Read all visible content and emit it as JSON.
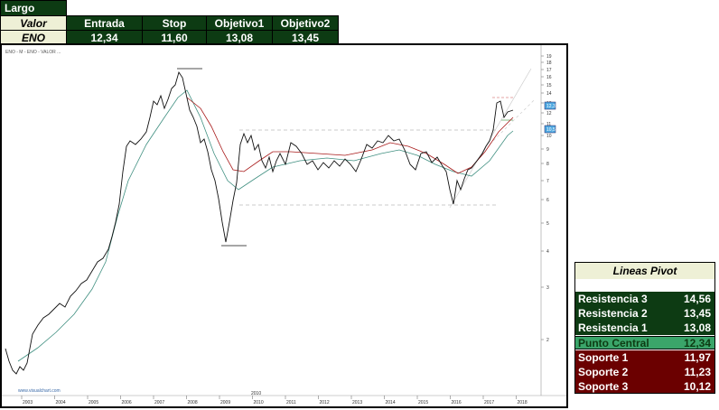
{
  "trade": {
    "direction": "Largo",
    "headers": [
      "Valor",
      "Entrada",
      "Stop",
      "Objetivo1",
      "Objetivo2"
    ],
    "values": [
      "ENO",
      "12,34",
      "11,60",
      "13,08",
      "13,45"
    ]
  },
  "chart": {
    "price_axis": [
      "19",
      "18",
      "17",
      "16",
      "15",
      "14",
      "13",
      "12",
      "11",
      "10",
      "9",
      "8",
      "7",
      "6",
      "5",
      "4",
      "3",
      "2"
    ],
    "x_axis": [
      "2003",
      "2004",
      "2005",
      "2006",
      "2007",
      "2008",
      "2009",
      "2010",
      "2011",
      "2012",
      "2013",
      "2014",
      "2015",
      "2016",
      "2017",
      "2018"
    ],
    "cursor_year": "2010",
    "watermark": "www.visualchart.com",
    "tags": [
      "12,3",
      "10,5"
    ],
    "header_text": "ENO - M - ENO - VALOR ..."
  },
  "pivot": {
    "title": "Lineas Pivot",
    "rows": [
      {
        "label": "Resistencia 3",
        "value": "14,56"
      },
      {
        "label": "Resistencia 2",
        "value": "13,45"
      },
      {
        "label": "Resistencia 1",
        "value": "13,08"
      },
      {
        "label": "Punto Central",
        "value": "12,34"
      },
      {
        "label": "Soporte 1",
        "value": "11,97"
      },
      {
        "label": "Soporte 2",
        "value": "11,23"
      },
      {
        "label": "Soporte 3",
        "value": "10,12"
      }
    ]
  },
  "colors": {
    "dark_green": "#0d3b13",
    "mid_green": "#3aa56a",
    "dark_red": "#6b0000",
    "price_line": "#111111",
    "ma_red": "#a81a1a",
    "ma_teal": "#3f8f80"
  }
}
